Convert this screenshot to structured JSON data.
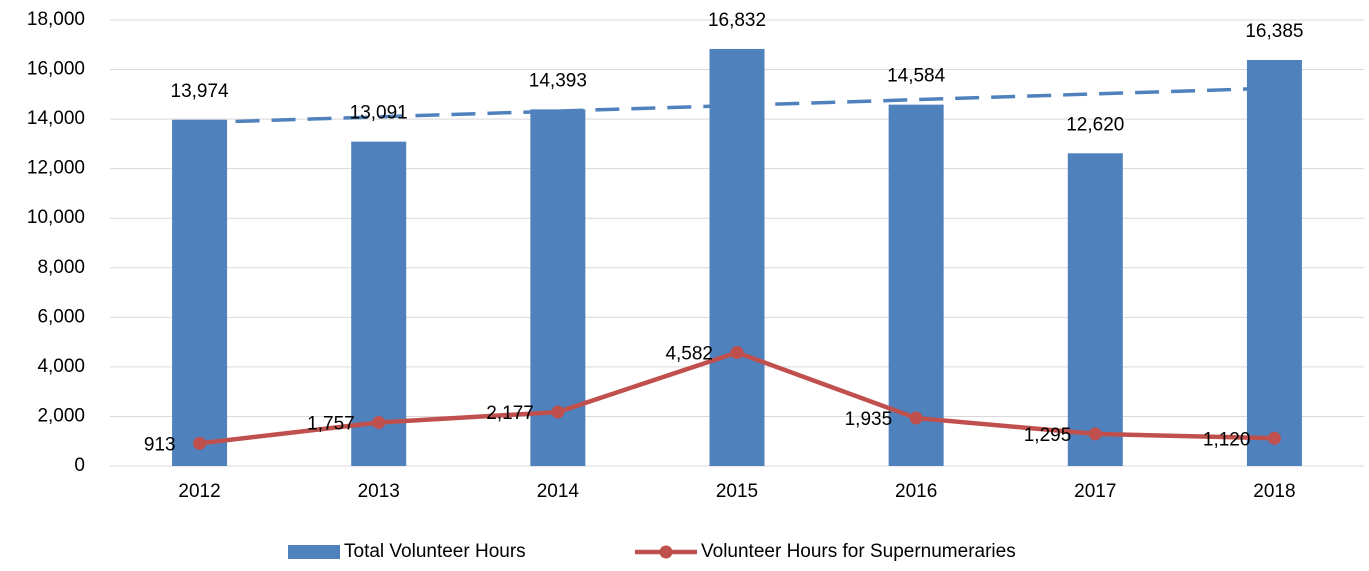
{
  "chart_data": {
    "type": "bar-line",
    "categories": [
      "2012",
      "2013",
      "2014",
      "2015",
      "2016",
      "2017",
      "2018"
    ],
    "series": [
      {
        "name": "Total Volunteer Hours",
        "type": "bar",
        "color": "#4f81bd",
        "values": [
          13974,
          13091,
          14393,
          16832,
          14584,
          12620,
          16385
        ],
        "value_labels": [
          "13,974",
          "13,091",
          "14,393",
          "16,832",
          "14,584",
          "12,620",
          "16,385"
        ],
        "trendline": true
      },
      {
        "name": "Volunteer Hours for Supernumeraries",
        "type": "line",
        "color": "#c0504d",
        "values": [
          913,
          1757,
          2177,
          4582,
          1935,
          1295,
          1120
        ],
        "value_labels": [
          "913",
          "1,757",
          "2,177",
          "4,582",
          "1,935",
          "1,295",
          "1,120"
        ]
      }
    ],
    "ylim": [
      0,
      18000
    ],
    "yticks": [
      0,
      {
        "value": 2000,
        "label": "2,000"
      },
      {
        "value": 4000,
        "label": "4,000"
      },
      {
        "value": 6000,
        "label": "6,000"
      },
      {
        "value": 8000,
        "label": "8,000"
      },
      {
        "value": 10000,
        "label": "10,000"
      },
      {
        "value": 12000,
        "label": "12,000"
      },
      {
        "value": 14000,
        "label": "14,000"
      },
      {
        "value": 16000,
        "label": "16,000"
      },
      {
        "value": 18000,
        "label": "18,000"
      }
    ],
    "grid": true,
    "legend": "bottom"
  }
}
